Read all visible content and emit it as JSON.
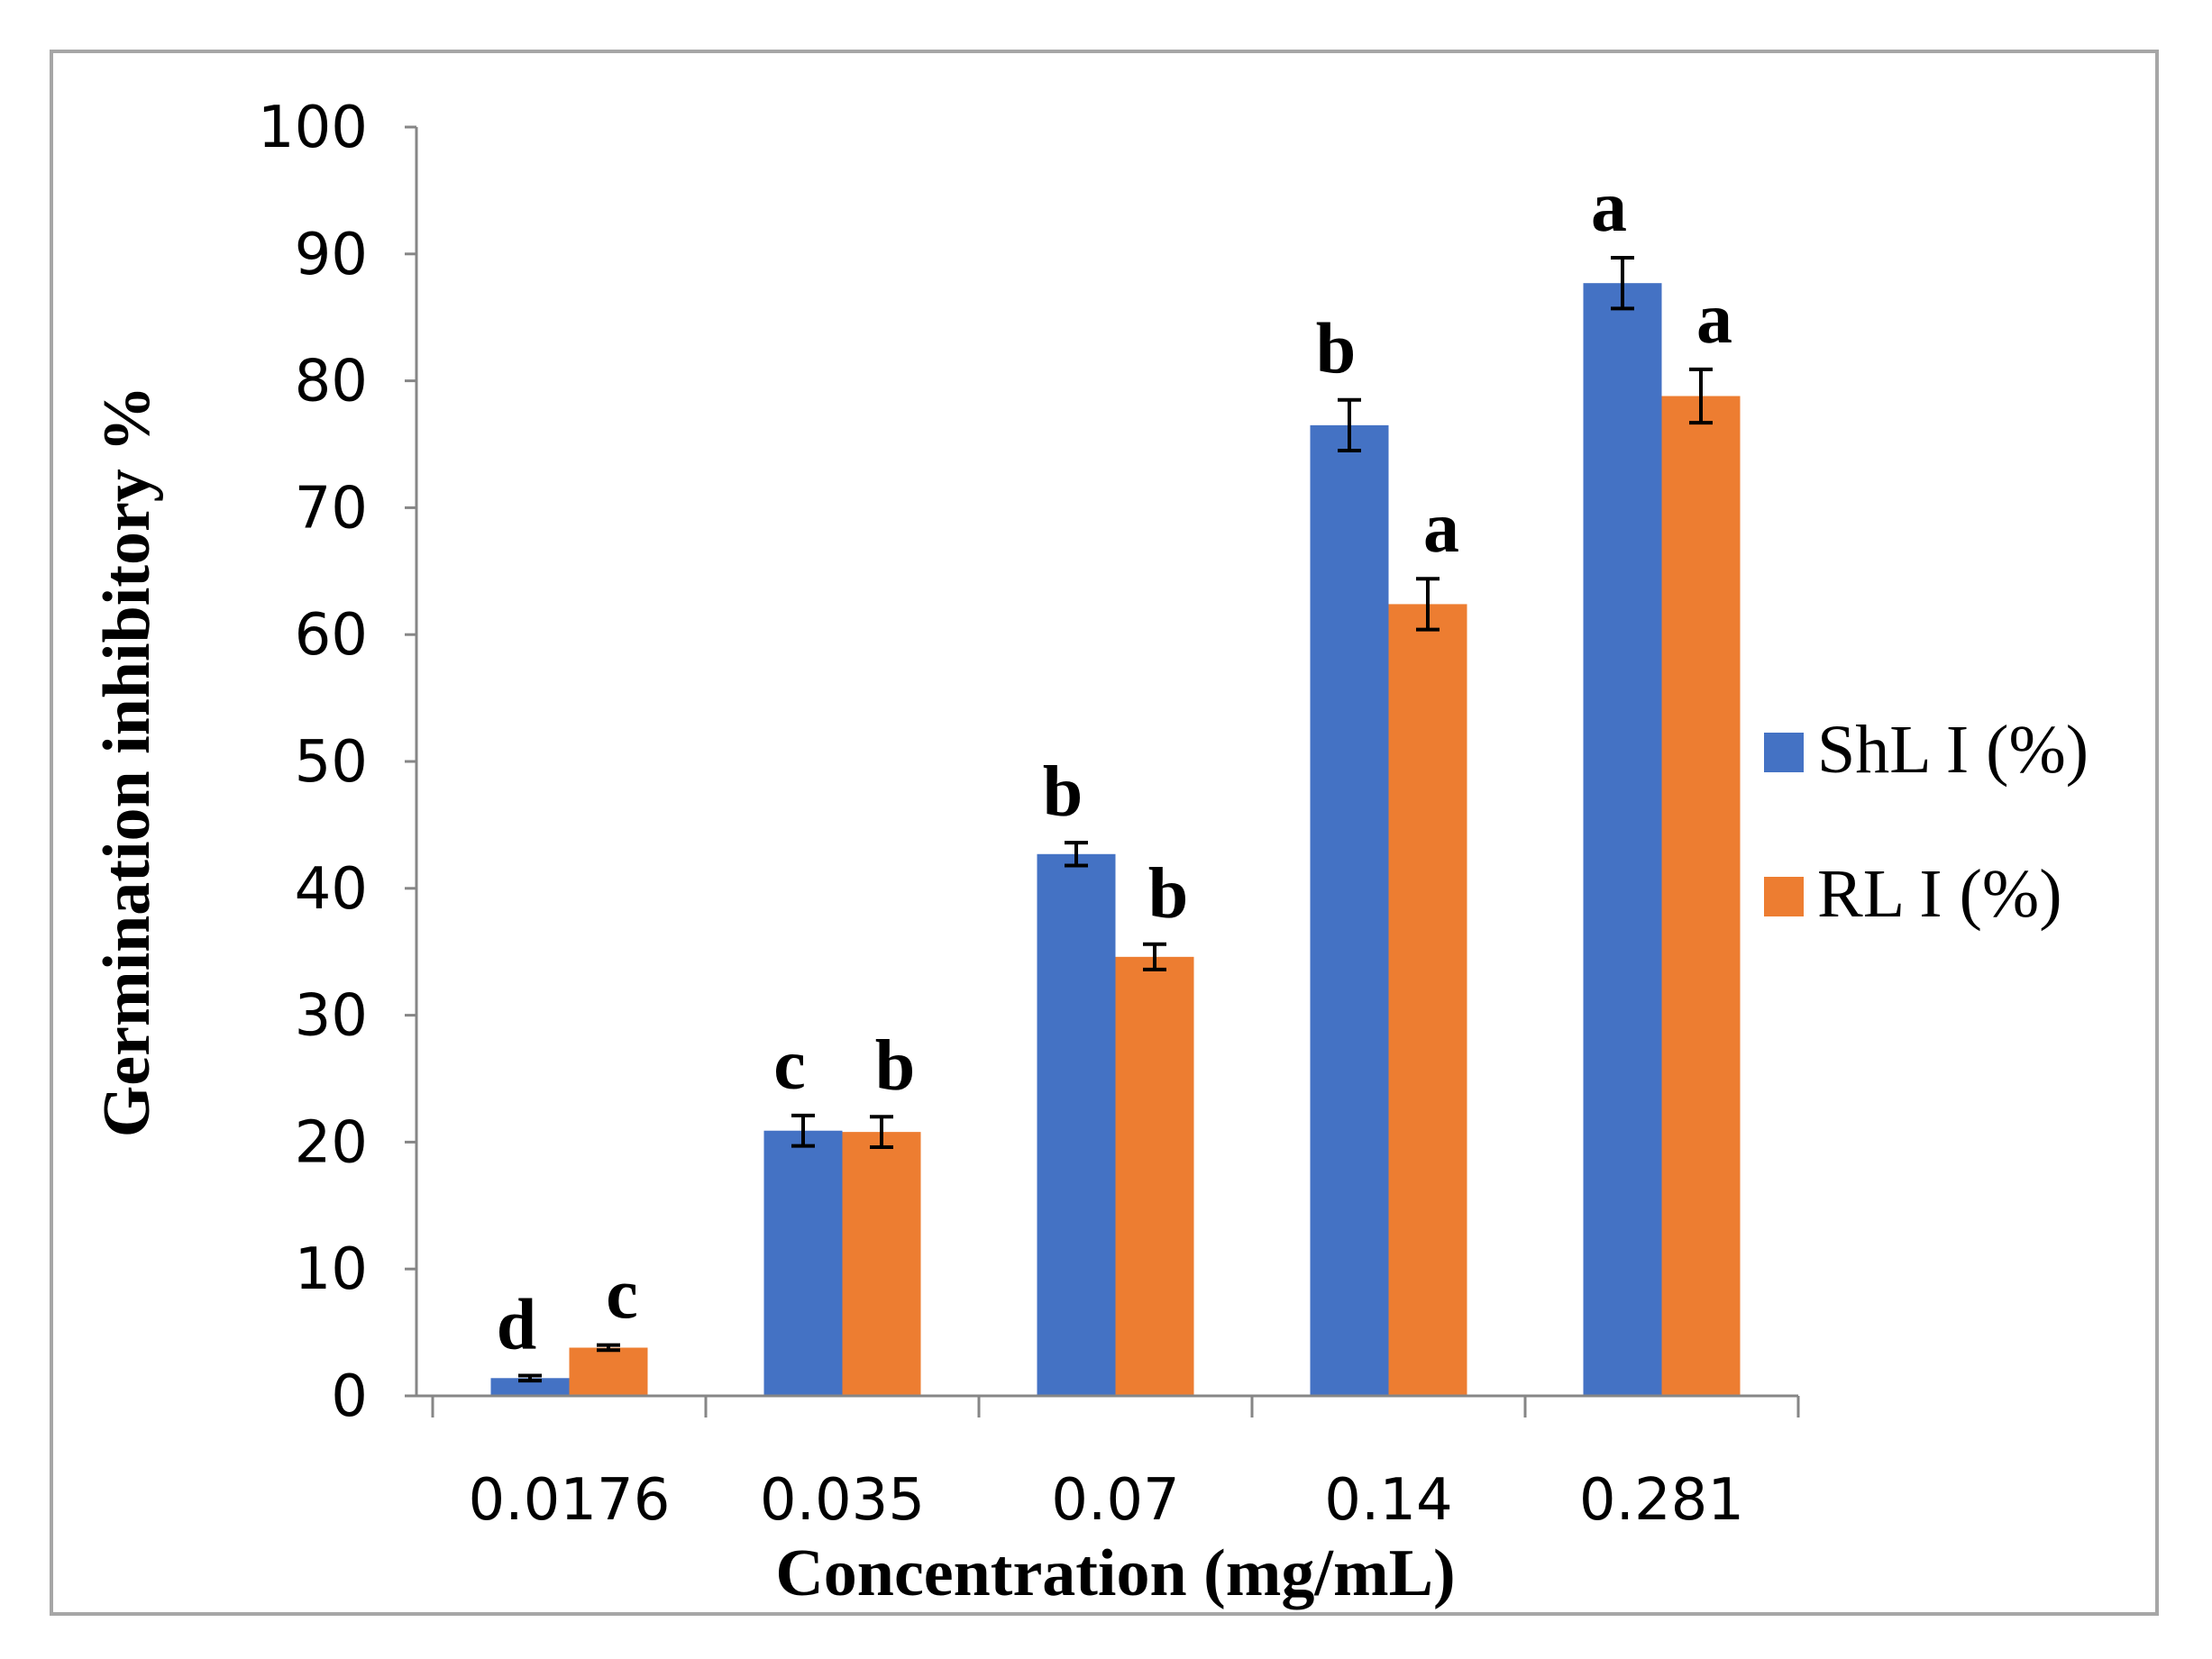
{
  "chart_data": {
    "type": "bar",
    "title": "",
    "xlabel": "Concentration (mg/mL)",
    "ylabel": "Germination inhibitory %",
    "ylim": [
      0,
      100
    ],
    "yticks": [
      "0",
      "10",
      "20",
      "30",
      "40",
      "50",
      "60",
      "70",
      "80",
      "90",
      "100"
    ],
    "categories": [
      "0.0176",
      "0.035",
      "0.07",
      "0.14",
      "0.281"
    ],
    "legend_position": "right",
    "series": [
      {
        "name": "ShL I (%)",
        "color": "#4472c4",
        "values": [
          1.4,
          20.9,
          42.7,
          76.5,
          87.7
        ],
        "errors": [
          0.2,
          1.2,
          0.9,
          2.0,
          2.0
        ],
        "significance": [
          "d",
          "c",
          "b",
          "b",
          "a"
        ]
      },
      {
        "name": "RL I (%)",
        "color": "#ed7d31",
        "values": [
          3.8,
          20.8,
          34.6,
          62.4,
          78.8
        ],
        "errors": [
          0.2,
          1.2,
          1.0,
          2.0,
          2.1
        ],
        "significance": [
          "c",
          "b",
          "b",
          "a",
          "a"
        ]
      }
    ]
  }
}
